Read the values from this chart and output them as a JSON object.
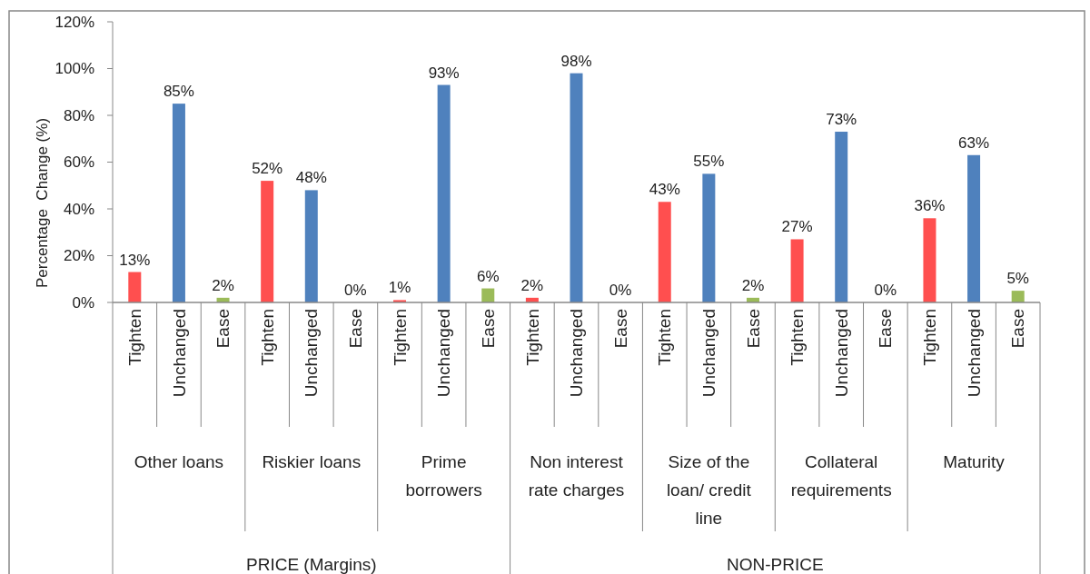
{
  "chart_data": {
    "type": "bar",
    "ylabel": "Percentage  Change (%)",
    "categories": [
      "Tighten",
      "Unchanged",
      "Ease",
      "Tighten",
      "Unchanged",
      "Ease",
      "Tighten",
      "Unchanged",
      "Ease",
      "Tighten",
      "Unchanged",
      "Ease",
      "Tighten",
      "Unchanged",
      "Ease",
      "Tighten",
      "Unchanged",
      "Ease",
      "Tighten",
      "Unchanged",
      "Ease"
    ],
    "values": [
      13,
      85,
      2,
      52,
      48,
      0,
      1,
      93,
      6,
      2,
      98,
      0,
      43,
      55,
      2,
      27,
      73,
      0,
      36,
      63,
      5
    ],
    "value_labels": [
      "13%",
      "85%",
      "2%",
      "52%",
      "48%",
      "0%",
      "1%",
      "93%",
      "6%",
      "2%",
      "98%",
      "0%",
      "43%",
      "55%",
      "2%",
      "27%",
      "73%",
      "0%",
      "36%",
      "63%",
      "5%"
    ],
    "colors": [
      "#ff4f4f",
      "#4f81bd",
      "#9bbb59",
      "#ff4f4f",
      "#4f81bd",
      "#9bbb59",
      "#ff4f4f",
      "#4f81bd",
      "#9bbb59",
      "#ff4f4f",
      "#4f81bd",
      "#9bbb59",
      "#ff4f4f",
      "#4f81bd",
      "#9bbb59",
      "#ff4f4f",
      "#4f81bd",
      "#9bbb59",
      "#ff4f4f",
      "#4f81bd",
      "#9bbb59"
    ],
    "ylim": [
      0,
      120
    ],
    "yticks": [
      {
        "value": 0,
        "label": "0%"
      },
      {
        "value": 20,
        "label": "20%"
      },
      {
        "value": 40,
        "label": "40%"
      },
      {
        "value": 60,
        "label": "60%"
      },
      {
        "value": 80,
        "label": "80%"
      },
      {
        "value": 100,
        "label": "100%"
      },
      {
        "value": 120,
        "label": "120%"
      }
    ],
    "annotations": [
      "Other loans",
      "Riskier loans",
      "Prime borrowers",
      "Non interest rate charges",
      "Size of the loan/ credit line",
      "Collateral requirements",
      "Maturity",
      "PRICE (Margins)",
      "NON-PRICE"
    ]
  }
}
